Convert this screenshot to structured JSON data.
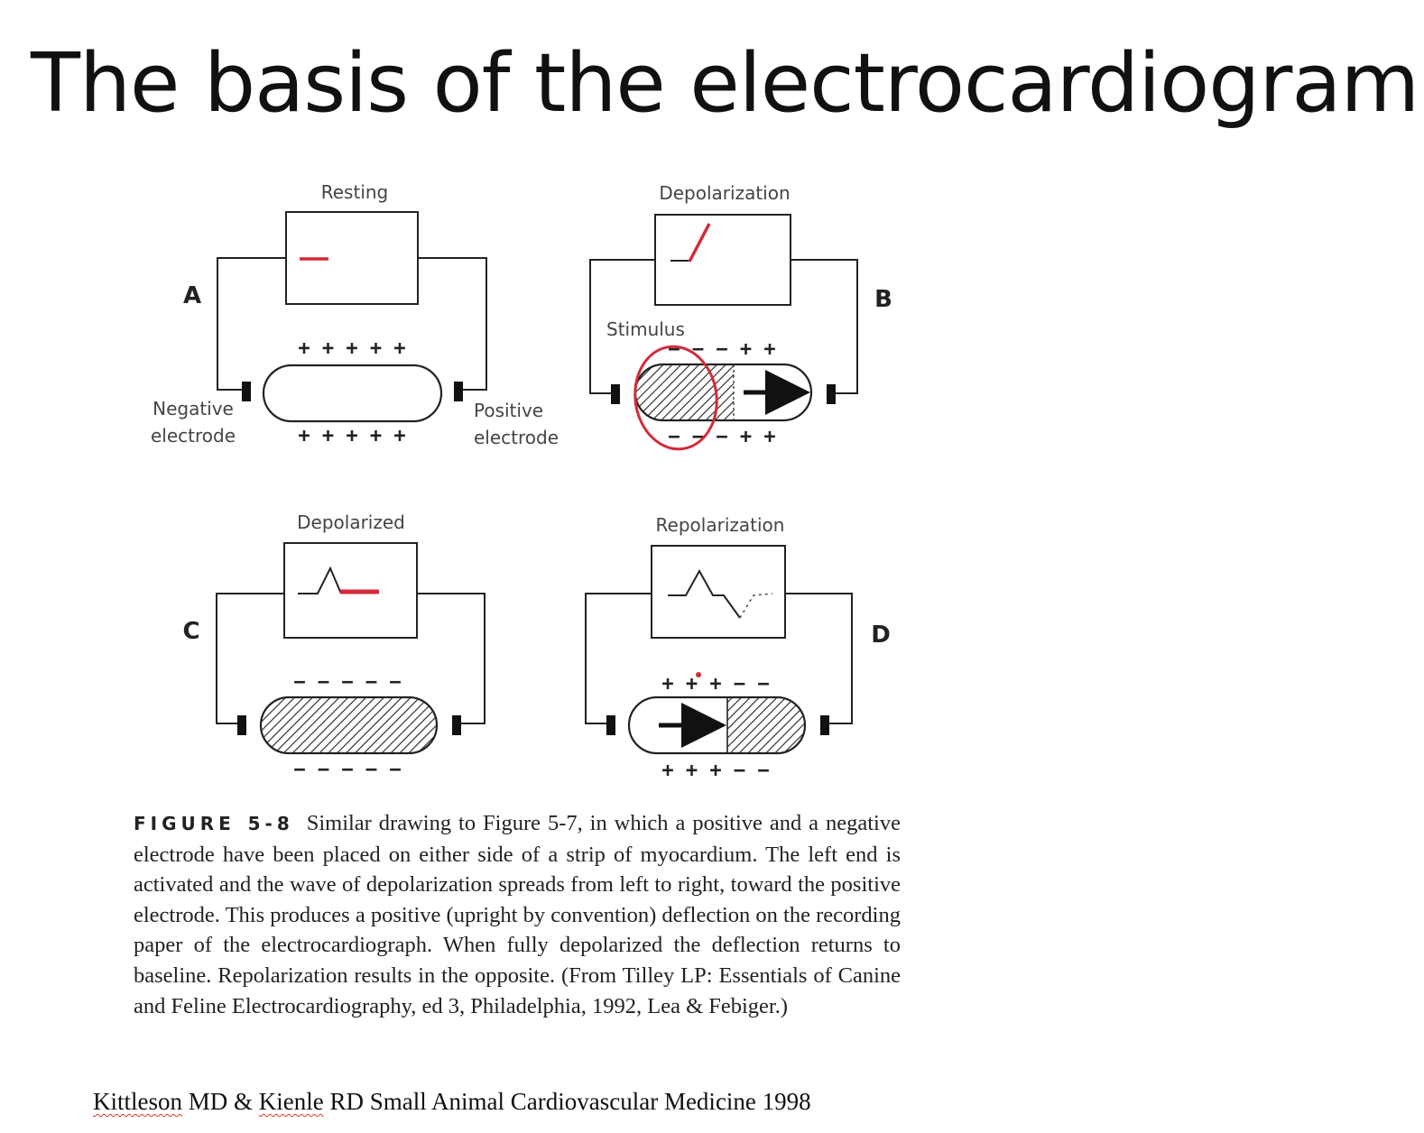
{
  "slide": {
    "title": "The basis of the electrocardiogram"
  },
  "figure": {
    "panels": [
      {
        "letter": "A",
        "state": "Resting",
        "top_charges": "+ + + + +",
        "bottom_charges": "+ + + + +"
      },
      {
        "letter": "B",
        "state": "Depolarization",
        "top_charges": "− − − + +",
        "bottom_charges": "− − − + +",
        "stimulus_label": "Stimulus"
      },
      {
        "letter": "C",
        "state": "Depolarized",
        "top_charges": "− − − − −",
        "bottom_charges": "− − − − −"
      },
      {
        "letter": "D",
        "state": "Repolarization",
        "top_charges": "+ + + − −",
        "bottom_charges": "+ + + − −"
      }
    ],
    "electrodes": {
      "negative_line1": "Negative",
      "negative_line2": "electrode",
      "positive_line1": "Positive",
      "positive_line2": "electrode"
    },
    "caption": {
      "label": "FIGURE 5-8",
      "text": "Similar drawing to Figure 5-7, in which a positive and a negative electrode have been placed on either side of a strip of myocardium. The left end is activated and the wave of depolarization spreads from left to right, toward the positive electrode. This produces a positive (upright by convention) deflection on the recording paper of the electrocardiograph. When fully depolarized the deflection returns to baseline. Repolarization results in the opposite. (From Tilley LP: Essentials of Canine and Feline Electrocardiography, ed 3, Philadelphia, 1992, Lea & Febiger.)"
    }
  },
  "citation": {
    "author1": "Kittleson",
    "text1": " MD & ",
    "author2": "Kienle",
    "text2": " RD  Small Animal Cardiovascular Medicine 1998"
  },
  "colors": {
    "annotation_red": "#d42a3a",
    "line": "#222222"
  }
}
